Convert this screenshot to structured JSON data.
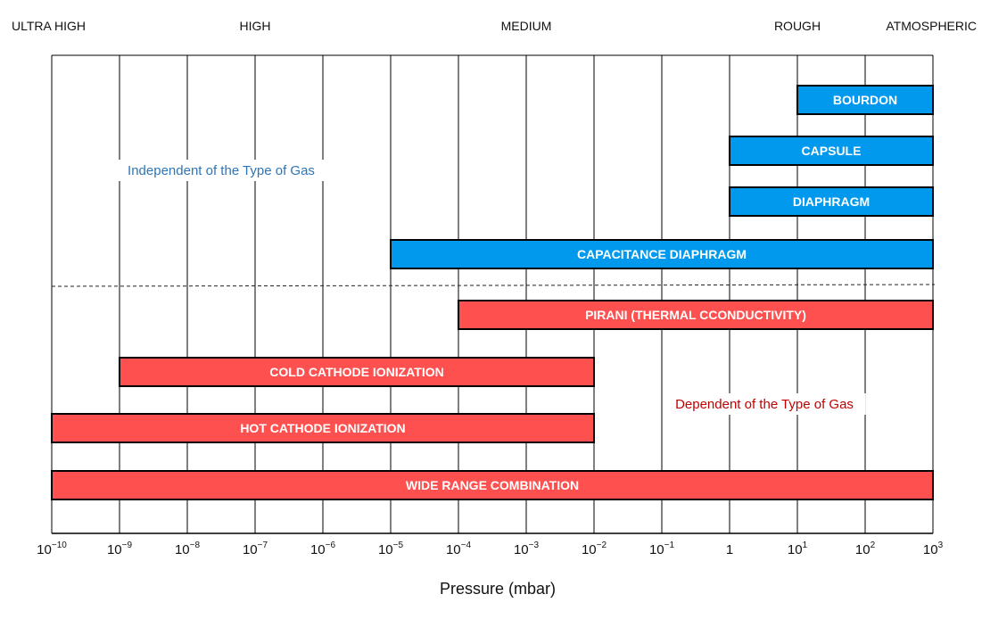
{
  "chart_data": {
    "type": "bar",
    "orientation": "horizontal",
    "x_scale": "log",
    "xlim": [
      1e-10,
      1000
    ],
    "xlabel": "Pressure (mbar)",
    "x_ticks": [
      {
        "base": "10",
        "exp": "−10"
      },
      {
        "base": "10",
        "exp": "−9"
      },
      {
        "base": "10",
        "exp": "−8"
      },
      {
        "base": "10",
        "exp": "−7"
      },
      {
        "base": "10",
        "exp": "−6"
      },
      {
        "base": "10",
        "exp": "−5"
      },
      {
        "base": "10",
        "exp": "−4"
      },
      {
        "base": "10",
        "exp": "−3"
      },
      {
        "base": "10",
        "exp": "−2"
      },
      {
        "base": "10",
        "exp": "−1"
      },
      {
        "base": "1",
        "exp": ""
      },
      {
        "base": "10",
        "exp": "1"
      },
      {
        "base": "10",
        "exp": "2"
      },
      {
        "base": "10",
        "exp": "3"
      }
    ],
    "grid": "vertical",
    "regions": [
      {
        "label": "ULTRA HIGH",
        "at": 2e-11
      },
      {
        "label": "HIGH",
        "at": 1e-07
      },
      {
        "label": "MEDIUM",
        "at": 0.001
      },
      {
        "label": "ROUGH",
        "at": 10
      },
      {
        "label": "ATMOSPHERIC",
        "at": 1000
      }
    ],
    "series": [
      {
        "name": "Independent of the Type of Gas",
        "color": "#0099ee",
        "text_color": "#2e75b6"
      },
      {
        "name": "Dependent of the Type of Gas",
        "color": "#ff5050",
        "text_color": "#c00000"
      }
    ],
    "bars": [
      {
        "label": "BOURDON",
        "min": 10,
        "max": 1000,
        "group": 0
      },
      {
        "label": "CAPSULE",
        "min": 1,
        "max": 1000,
        "group": 0
      },
      {
        "label": "DIAPHRAGM",
        "min": 1,
        "max": 1000,
        "group": 0
      },
      {
        "label": "CAPACITANCE DIAPHRAGM",
        "min": 1e-05,
        "max": 1000,
        "group": 0
      },
      {
        "label": "PIRANI (THERMAL CCONDUCTIVITY)",
        "min": 0.0001,
        "max": 1000,
        "group": 1
      },
      {
        "label": "COLD CATHODE IONIZATION",
        "min": 1e-09,
        "max": 0.01,
        "group": 1
      },
      {
        "label": "HOT CATHODE IONIZATION",
        "min": 1e-10,
        "max": 0.01,
        "group": 1
      },
      {
        "label": "WIDE RANGE COMBINATION",
        "min": 1e-10,
        "max": 1000,
        "group": 1
      }
    ],
    "divider": "dashed"
  }
}
